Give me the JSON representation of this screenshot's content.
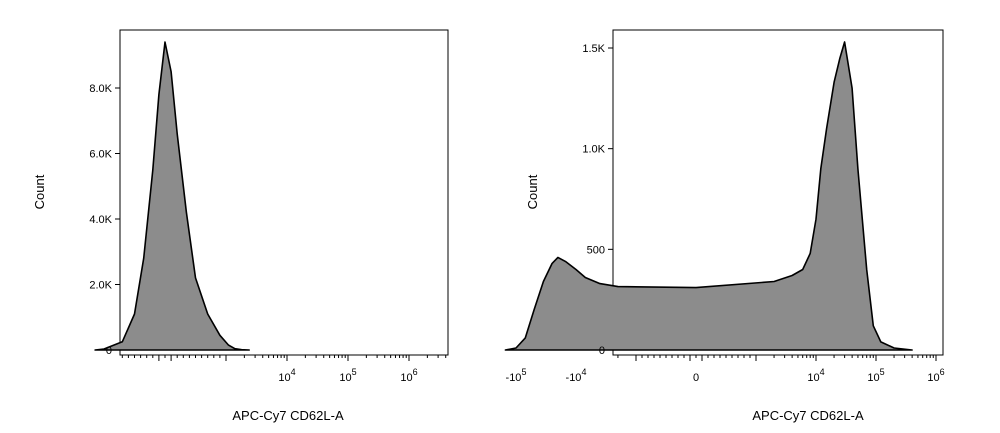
{
  "chart_data": [
    {
      "type": "area",
      "title": "",
      "xlabel": "APC-Cy7 CD62L-A",
      "ylabel": "Count",
      "x_scale": "biexponential",
      "x_tick_labels": [
        {
          "value": 10000,
          "base": "10",
          "exp": "4"
        },
        {
          "value": 100000,
          "base": "10",
          "exp": "5"
        },
        {
          "value": 1000000,
          "base": "10",
          "exp": "6"
        }
      ],
      "y_ticks": [
        {
          "value": 0,
          "label": "0"
        },
        {
          "value": 2000,
          "label": "2.0K"
        },
        {
          "value": 4000,
          "label": "4.0K"
        },
        {
          "value": 6000,
          "label": "6.0K"
        },
        {
          "value": 8000,
          "label": "8.0K"
        }
      ],
      "ylim": [
        0,
        10000
      ],
      "grid": false,
      "series": [
        {
          "points": [
            [
              -1400,
              0
            ],
            [
              -1000,
              30
            ],
            [
              -700,
              250
            ],
            [
              -500,
              1100
            ],
            [
              -350,
              2800
            ],
            [
              -200,
              5500
            ],
            [
              -100,
              7800
            ],
            [
              0,
              9400
            ],
            [
              100,
              8500
            ],
            [
              200,
              6600
            ],
            [
              350,
              4200
            ],
            [
              500,
              2200
            ],
            [
              700,
              1100
            ],
            [
              900,
              450
            ],
            [
              1100,
              150
            ],
            [
              1400,
              40
            ],
            [
              1800,
              10
            ],
            [
              2400,
              0
            ]
          ]
        }
      ]
    },
    {
      "type": "area",
      "title": "",
      "xlabel": "APC-Cy7 CD62L-A",
      "ylabel": "Count",
      "x_scale": "biexponential",
      "x_tick_labels": [
        {
          "value": -100000,
          "base": "-10",
          "exp": "5"
        },
        {
          "value": -10000,
          "base": "-10",
          "exp": "4"
        },
        {
          "value": 0,
          "base": "0",
          "exp": ""
        },
        {
          "value": 10000,
          "base": "10",
          "exp": "4"
        },
        {
          "value": 100000,
          "base": "10",
          "exp": "5"
        },
        {
          "value": 1000000,
          "base": "10",
          "exp": "6"
        }
      ],
      "y_ticks": [
        {
          "value": 0,
          "label": "0"
        },
        {
          "value": 500,
          "label": "500"
        },
        {
          "value": 1000,
          "label": "1.0K"
        },
        {
          "value": 1500,
          "label": "1.5K"
        }
      ],
      "ylim": [
        0,
        1500
      ],
      "grid": false,
      "series": [
        {
          "points": [
            [
              -150000,
              0
            ],
            [
              -100000,
              10
            ],
            [
              -70000,
              60
            ],
            [
              -50000,
              200
            ],
            [
              -35000,
              340
            ],
            [
              -25000,
              430
            ],
            [
              -20000,
              460
            ],
            [
              -15000,
              440
            ],
            [
              -10000,
              400
            ],
            [
              -7000,
              360
            ],
            [
              -4000,
              330
            ],
            [
              -2000,
              315
            ],
            [
              0,
              310
            ],
            [
              2000,
              340
            ],
            [
              4000,
              370
            ],
            [
              6000,
              400
            ],
            [
              8000,
              480
            ],
            [
              10000,
              650
            ],
            [
              12000,
              900
            ],
            [
              15000,
              1100
            ],
            [
              20000,
              1330
            ],
            [
              25000,
              1450
            ],
            [
              30000,
              1530
            ],
            [
              40000,
              1300
            ],
            [
              50000,
              900
            ],
            [
              70000,
              400
            ],
            [
              90000,
              120
            ],
            [
              120000,
              40
            ],
            [
              200000,
              10
            ],
            [
              400000,
              0
            ]
          ]
        }
      ]
    }
  ]
}
